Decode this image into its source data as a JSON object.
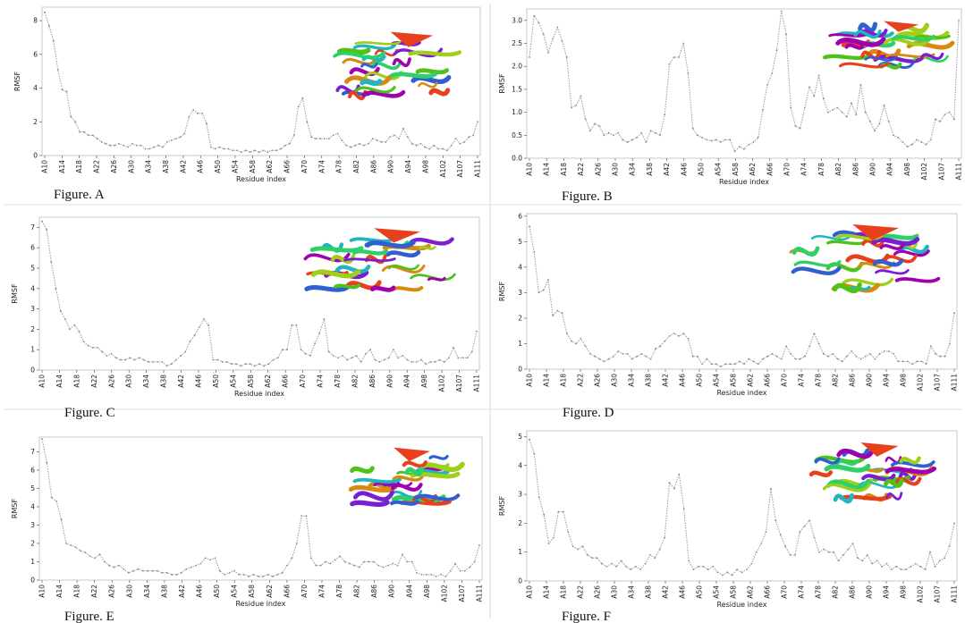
{
  "figure": {
    "charts": [
      "A",
      "B",
      "C",
      "D",
      "E",
      "F"
    ]
  },
  "chart_data": [
    {
      "type": "line",
      "panel": "A",
      "caption": "Figure. A",
      "xlabel": "Residue index",
      "ylabel": "RMSF",
      "x_tick_labels": [
        "A10",
        "A14",
        "A18",
        "A22",
        "A26",
        "A30",
        "A34",
        "A38",
        "A42",
        "A46",
        "A50",
        "A54",
        "A58",
        "A62",
        "A66",
        "A70",
        "A74",
        "A78",
        "A82",
        "A86",
        "A90",
        "A94",
        "A98",
        "A102",
        "A107",
        "A111"
      ],
      "yticks": [
        0,
        2,
        4,
        6,
        8
      ],
      "ylim": [
        0,
        8.8
      ],
      "line_color": "#a8a8a8",
      "values": [
        8.5,
        7.7,
        6.8,
        5.1,
        3.9,
        3.8,
        2.3,
        2.0,
        1.4,
        1.4,
        1.2,
        1.2,
        1.0,
        0.8,
        0.7,
        0.6,
        0.6,
        0.7,
        0.6,
        0.5,
        0.7,
        0.6,
        0.6,
        0.4,
        0.4,
        0.5,
        0.6,
        0.5,
        0.8,
        0.9,
        1.0,
        1.1,
        1.3,
        2.3,
        2.7,
        2.5,
        2.5,
        1.9,
        0.5,
        0.4,
        0.5,
        0.4,
        0.4,
        0.3,
        0.3,
        0.2,
        0.3,
        0.2,
        0.3,
        0.2,
        0.3,
        0.2,
        0.3,
        0.3,
        0.4,
        0.6,
        0.7,
        1.2,
        2.9,
        3.4,
        2.0,
        1.1,
        1.0,
        1.0,
        1.0,
        1.0,
        1.2,
        1.3,
        0.9,
        0.6,
        0.5,
        0.6,
        0.7,
        0.6,
        0.7,
        1.0,
        0.9,
        0.8,
        0.8,
        1.1,
        1.2,
        1.0,
        1.6,
        1.1,
        0.7,
        0.6,
        0.7,
        0.5,
        0.4,
        0.6,
        0.4,
        0.4,
        0.3,
        0.6,
        1.0,
        0.7,
        0.8,
        1.1,
        1.2,
        2.0
      ]
    },
    {
      "type": "line",
      "panel": "B",
      "caption": "Figure. B",
      "xlabel": "Residue index",
      "ylabel": "RMSF",
      "x_tick_labels": [
        "A10",
        "A14",
        "A18",
        "A22",
        "A26",
        "A30",
        "A34",
        "A38",
        "A42",
        "A46",
        "A50",
        "A54",
        "A58",
        "A62",
        "A66",
        "A70",
        "A74",
        "A78",
        "A82",
        "A86",
        "A90",
        "A94",
        "A98",
        "A102",
        "A107",
        "A111"
      ],
      "yticks": [
        0.0,
        0.5,
        1.0,
        1.5,
        2.0,
        2.5,
        3.0
      ],
      "ylim": [
        0,
        3.25
      ],
      "line_color": "#a8a8a8",
      "values": [
        2.2,
        3.1,
        2.95,
        2.7,
        2.3,
        2.6,
        2.85,
        2.55,
        2.2,
        1.1,
        1.15,
        1.35,
        0.85,
        0.6,
        0.75,
        0.7,
        0.5,
        0.55,
        0.5,
        0.55,
        0.4,
        0.35,
        0.4,
        0.45,
        0.55,
        0.35,
        0.6,
        0.55,
        0.5,
        0.95,
        2.05,
        2.2,
        2.2,
        2.5,
        1.85,
        0.65,
        0.5,
        0.45,
        0.4,
        0.38,
        0.4,
        0.35,
        0.4,
        0.4,
        0.15,
        0.25,
        0.2,
        0.3,
        0.35,
        0.45,
        1.05,
        1.6,
        1.85,
        2.35,
        3.2,
        2.7,
        1.1,
        0.7,
        0.65,
        1.1,
        1.55,
        1.35,
        1.8,
        1.3,
        1.0,
        1.05,
        1.1,
        1.0,
        0.9,
        1.2,
        0.95,
        1.6,
        1.0,
        0.8,
        0.6,
        0.75,
        1.15,
        0.8,
        0.5,
        0.45,
        0.35,
        0.25,
        0.3,
        0.4,
        0.35,
        0.3,
        0.4,
        0.85,
        0.8,
        0.95,
        1.0,
        0.85,
        3.0
      ]
    },
    {
      "type": "line",
      "panel": "C",
      "caption": "Figure. C",
      "xlabel": "Residue index",
      "ylabel": "RMSF",
      "x_tick_labels": [
        "A10",
        "A14",
        "A18",
        "A22",
        "A26",
        "A30",
        "A34",
        "A38",
        "A42",
        "A46",
        "A50",
        "A54",
        "A58",
        "A62",
        "A66",
        "A70",
        "A74",
        "A78",
        "A82",
        "A86",
        "A90",
        "A94",
        "A98",
        "A102",
        "A107",
        "A111"
      ],
      "yticks": [
        0,
        1,
        2,
        3,
        4,
        5,
        6,
        7
      ],
      "ylim": [
        0,
        7.5
      ],
      "line_color": "#a8a8a8",
      "values": [
        7.3,
        6.9,
        5.3,
        4.0,
        2.9,
        2.5,
        2.0,
        2.2,
        1.9,
        1.4,
        1.2,
        1.1,
        1.1,
        0.9,
        0.7,
        0.8,
        0.6,
        0.5,
        0.5,
        0.6,
        0.5,
        0.6,
        0.5,
        0.4,
        0.4,
        0.4,
        0.4,
        0.2,
        0.3,
        0.5,
        0.7,
        0.9,
        1.4,
        1.7,
        2.1,
        2.5,
        2.2,
        0.5,
        0.5,
        0.4,
        0.4,
        0.3,
        0.3,
        0.2,
        0.3,
        0.3,
        0.2,
        0.3,
        0.2,
        0.3,
        0.5,
        0.6,
        1.0,
        1.0,
        2.2,
        2.2,
        1.0,
        0.8,
        0.7,
        1.3,
        1.8,
        2.5,
        0.9,
        0.7,
        0.6,
        0.7,
        0.5,
        0.6,
        0.7,
        0.4,
        0.8,
        1.0,
        0.5,
        0.4,
        0.5,
        0.6,
        1.0,
        0.6,
        0.7,
        0.5,
        0.4,
        0.4,
        0.5,
        0.3,
        0.4,
        0.4,
        0.5,
        0.4,
        0.6,
        1.1,
        0.6,
        0.6,
        0.6,
        0.9,
        1.9
      ]
    },
    {
      "type": "line",
      "panel": "D",
      "caption": "Figure. D",
      "xlabel": "Residue index",
      "ylabel": "RMSF",
      "x_tick_labels": [
        "A10",
        "A14",
        "A18",
        "A22",
        "A26",
        "A30",
        "A34",
        "A38",
        "A42",
        "A46",
        "A50",
        "A54",
        "A58",
        "A62",
        "A66",
        "A70",
        "A74",
        "A78",
        "A82",
        "A86",
        "A90",
        "A94",
        "A98",
        "A102",
        "A107",
        "A111"
      ],
      "yticks": [
        0,
        1,
        2,
        3,
        4,
        5,
        6
      ],
      "ylim": [
        0,
        6.1
      ],
      "line_color": "#a8a8a8",
      "values": [
        5.6,
        4.6,
        3.0,
        3.1,
        3.5,
        2.1,
        2.3,
        2.2,
        1.4,
        1.1,
        1.0,
        1.2,
        0.9,
        0.6,
        0.5,
        0.4,
        0.3,
        0.4,
        0.5,
        0.7,
        0.6,
        0.6,
        0.4,
        0.5,
        0.6,
        0.5,
        0.4,
        0.8,
        0.9,
        1.1,
        1.3,
        1.4,
        1.3,
        1.4,
        1.2,
        0.5,
        0.5,
        0.2,
        0.4,
        0.2,
        0.2,
        0.1,
        0.2,
        0.2,
        0.2,
        0.3,
        0.2,
        0.4,
        0.3,
        0.2,
        0.4,
        0.5,
        0.6,
        0.5,
        0.4,
        0.9,
        0.6,
        0.4,
        0.4,
        0.5,
        0.9,
        1.4,
        1.0,
        0.6,
        0.5,
        0.6,
        0.4,
        0.3,
        0.5,
        0.7,
        0.5,
        0.4,
        0.5,
        0.6,
        0.4,
        0.6,
        0.7,
        0.7,
        0.6,
        0.3,
        0.3,
        0.3,
        0.2,
        0.3,
        0.3,
        0.2,
        0.9,
        0.6,
        0.5,
        0.5,
        1.0,
        2.2
      ]
    },
    {
      "type": "line",
      "panel": "E",
      "caption": "Figure. E",
      "xlabel": "Residue index",
      "ylabel": "RMSF",
      "x_tick_labels": [
        "A10",
        "A14",
        "A18",
        "A22",
        "A26",
        "A30",
        "A34",
        "A38",
        "A42",
        "A46",
        "A50",
        "A54",
        "A58",
        "A62",
        "A66",
        "A70",
        "A74",
        "A78",
        "A82",
        "A86",
        "A90",
        "A94",
        "A98",
        "A102",
        "A107",
        "A111"
      ],
      "yticks": [
        0,
        1,
        2,
        3,
        4,
        5,
        6,
        7
      ],
      "ylim": [
        0,
        7.8
      ],
      "line_color": "#a8a8a8",
      "values": [
        7.7,
        6.4,
        4.5,
        4.3,
        3.3,
        2.0,
        1.9,
        1.8,
        1.6,
        1.5,
        1.3,
        1.2,
        1.4,
        1.0,
        0.8,
        0.7,
        0.8,
        0.6,
        0.4,
        0.5,
        0.6,
        0.5,
        0.5,
        0.5,
        0.5,
        0.4,
        0.4,
        0.3,
        0.3,
        0.4,
        0.6,
        0.7,
        0.8,
        0.9,
        1.2,
        1.1,
        1.2,
        0.5,
        0.3,
        0.4,
        0.5,
        0.3,
        0.3,
        0.2,
        0.3,
        0.2,
        0.2,
        0.3,
        0.2,
        0.3,
        0.4,
        0.8,
        1.2,
        2.0,
        3.5,
        3.5,
        1.2,
        0.8,
        0.8,
        1.0,
        0.9,
        1.1,
        1.3,
        1.0,
        0.9,
        0.8,
        0.7,
        1.0,
        1.0,
        1.0,
        0.8,
        0.7,
        0.8,
        0.9,
        0.8,
        1.4,
        1.0,
        1.0,
        0.4,
        0.3,
        0.3,
        0.3,
        0.2,
        0.3,
        0.2,
        0.5,
        0.9,
        0.5,
        0.5,
        0.7,
        1.0,
        1.9
      ]
    },
    {
      "type": "line",
      "panel": "F",
      "caption": "Figure. F",
      "xlabel": "Residue index",
      "ylabel": "RMSF",
      "x_tick_labels": [
        "A10",
        "A14",
        "A18",
        "A22",
        "A26",
        "A30",
        "A34",
        "A38",
        "A42",
        "A46",
        "A50",
        "A54",
        "A58",
        "A62",
        "A66",
        "A70",
        "A74",
        "A78",
        "A82",
        "A86",
        "A90",
        "A94",
        "A98",
        "A102",
        "A107",
        "A111"
      ],
      "yticks": [
        0,
        1,
        2,
        3,
        4,
        5
      ],
      "ylim": [
        0,
        5.2
      ],
      "line_color": "#a8a8a8",
      "values": [
        4.9,
        4.4,
        2.9,
        2.3,
        1.3,
        1.5,
        2.4,
        2.4,
        1.7,
        1.2,
        1.1,
        1.2,
        0.9,
        0.8,
        0.8,
        0.6,
        0.5,
        0.6,
        0.5,
        0.7,
        0.5,
        0.4,
        0.5,
        0.4,
        0.6,
        0.9,
        0.8,
        1.1,
        1.5,
        3.4,
        3.2,
        3.7,
        2.5,
        0.7,
        0.4,
        0.5,
        0.5,
        0.4,
        0.5,
        0.3,
        0.2,
        0.3,
        0.2,
        0.4,
        0.3,
        0.4,
        0.6,
        1.0,
        1.3,
        1.7,
        3.2,
        2.1,
        1.6,
        1.2,
        0.9,
        0.9,
        1.7,
        1.9,
        2.1,
        1.5,
        1.0,
        1.1,
        1.0,
        1.0,
        0.7,
        0.9,
        1.1,
        1.3,
        0.8,
        0.7,
        0.9,
        0.6,
        0.7,
        0.5,
        0.6,
        0.4,
        0.5,
        0.4,
        0.4,
        0.5,
        0.6,
        0.5,
        0.4,
        1.0,
        0.5,
        0.7,
        0.8,
        1.2,
        2.0
      ]
    }
  ],
  "legend_colors": {
    "protein_palette": [
      "#e8401c",
      "#d88a10",
      "#2f5fd0",
      "#1fb6c2",
      "#7a1fd0",
      "#a000b0",
      "#4fc21a",
      "#9fcf1a",
      "#2fd06a"
    ]
  }
}
